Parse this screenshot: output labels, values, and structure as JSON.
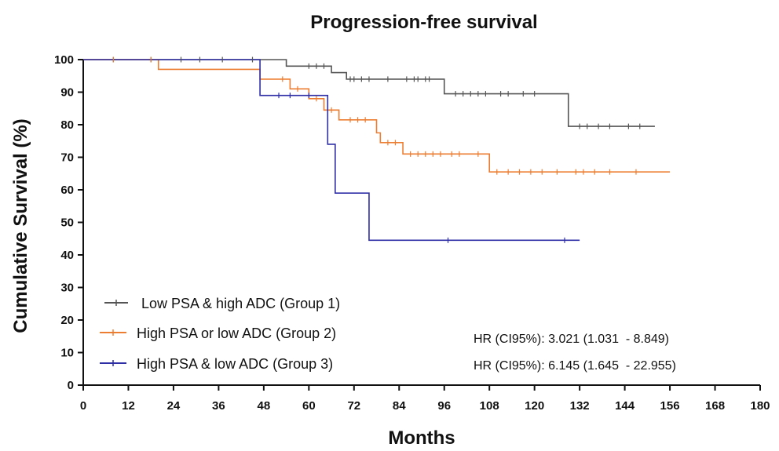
{
  "chart_data": {
    "type": "line",
    "title": "Progression-free survival",
    "xlabel": "Months",
    "ylabel": "Cumulative Survival (%)",
    "xlim": [
      0,
      180
    ],
    "ylim": [
      0,
      100
    ],
    "xticks": [
      0,
      12,
      24,
      36,
      48,
      60,
      72,
      84,
      96,
      108,
      120,
      132,
      144,
      156,
      168,
      180
    ],
    "yticks": [
      0,
      10,
      20,
      30,
      40,
      50,
      60,
      70,
      80,
      90,
      100
    ],
    "grid": false,
    "legend_position": "bottom-left",
    "series": [
      {
        "name": "Low PSA & high ADC (Group 1)",
        "color": "#555555",
        "steps": [
          [
            0,
            100
          ],
          [
            54,
            98
          ],
          [
            66,
            96
          ],
          [
            70,
            94
          ],
          [
            96,
            89.5
          ],
          [
            129,
            79.5
          ],
          [
            152,
            79.5
          ]
        ],
        "censored": [
          [
            8,
            100
          ],
          [
            18,
            100
          ],
          [
            26,
            100
          ],
          [
            31,
            100
          ],
          [
            37,
            100
          ],
          [
            45,
            100
          ],
          [
            60,
            98
          ],
          [
            62,
            98
          ],
          [
            64,
            98
          ],
          [
            71,
            94
          ],
          [
            72,
            94
          ],
          [
            74,
            94
          ],
          [
            76,
            94
          ],
          [
            81,
            94
          ],
          [
            86,
            94
          ],
          [
            88,
            94
          ],
          [
            89,
            94
          ],
          [
            91,
            94
          ],
          [
            92,
            94
          ],
          [
            99,
            89.5
          ],
          [
            101,
            89.5
          ],
          [
            103,
            89.5
          ],
          [
            105,
            89.5
          ],
          [
            107,
            89.5
          ],
          [
            111,
            89.5
          ],
          [
            113,
            89.5
          ],
          [
            117,
            89.5
          ],
          [
            120,
            89.5
          ],
          [
            132,
            79.5
          ],
          [
            134,
            79.5
          ],
          [
            137,
            79.5
          ],
          [
            140,
            79.5
          ],
          [
            145,
            79.5
          ],
          [
            148,
            79.5
          ]
        ]
      },
      {
        "name": "High PSA or low ADC (Group 2)",
        "color": "#ED7D31",
        "steps": [
          [
            0,
            100
          ],
          [
            20,
            97
          ],
          [
            47,
            94
          ],
          [
            55,
            91
          ],
          [
            60,
            88
          ],
          [
            64,
            84.5
          ],
          [
            68,
            81.5
          ],
          [
            78,
            77.5
          ],
          [
            79,
            74.5
          ],
          [
            85,
            71
          ],
          [
            108,
            65.5
          ],
          [
            156,
            65.5
          ]
        ],
        "censored": [
          [
            8,
            100
          ],
          [
            18,
            100
          ],
          [
            53,
            94
          ],
          [
            57,
            91
          ],
          [
            62,
            88
          ],
          [
            66,
            84.5
          ],
          [
            71,
            81.5
          ],
          [
            73,
            81.5
          ],
          [
            75,
            81.5
          ],
          [
            81,
            74.5
          ],
          [
            83,
            74.5
          ],
          [
            87,
            71
          ],
          [
            89,
            71
          ],
          [
            91,
            71
          ],
          [
            93,
            71
          ],
          [
            95,
            71
          ],
          [
            98,
            71
          ],
          [
            100,
            71
          ],
          [
            105,
            71
          ],
          [
            110,
            65.5
          ],
          [
            113,
            65.5
          ],
          [
            116,
            65.5
          ],
          [
            119,
            65.5
          ],
          [
            122,
            65.5
          ],
          [
            126,
            65.5
          ],
          [
            131,
            65.5
          ],
          [
            133,
            65.5
          ],
          [
            136,
            65.5
          ],
          [
            140,
            65.5
          ],
          [
            147,
            65.5
          ]
        ]
      },
      {
        "name": "High PSA & low ADC (Group 3)",
        "color": "#2E2EA6",
        "steps": [
          [
            0,
            100
          ],
          [
            47,
            89
          ],
          [
            65,
            74
          ],
          [
            67,
            59
          ],
          [
            76,
            44.5
          ],
          [
            132,
            44.5
          ]
        ],
        "censored": [
          [
            52,
            89
          ],
          [
            55,
            89
          ],
          [
            60,
            89
          ],
          [
            97,
            44.5
          ],
          [
            128,
            44.5
          ]
        ]
      }
    ],
    "annotations": [
      "HR (CI95%): 3.021 (1.031  - 8.849)",
      "HR (CI95%): 6.145 (1.645  - 22.955)"
    ]
  }
}
